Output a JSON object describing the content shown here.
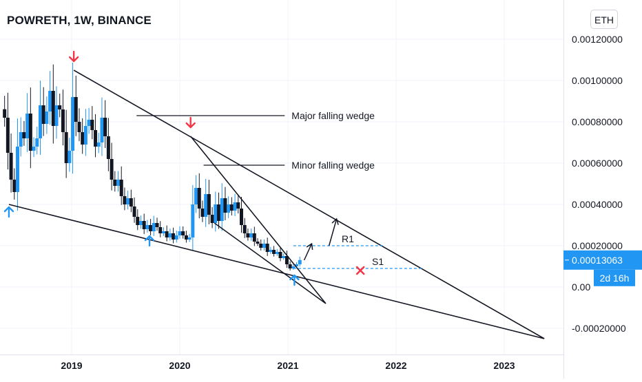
{
  "header": {
    "title": "POWRETH, 1W, BINANCE",
    "currency_button": "ETH"
  },
  "colors": {
    "candle_up": "#2196f3",
    "candle_down": "#131722",
    "arrow_up": "#2196f3",
    "arrow_down": "#f23645",
    "cross": "#f23645",
    "price_label_bg": "#2196f3",
    "level_line": "#2196f3"
  },
  "chart_data": {
    "type": "candlestick",
    "title": "POWRETH, 1W, BINANCE",
    "xlabel": "",
    "ylabel": "",
    "x_tick_labels": [
      "2019",
      "2020",
      "2021",
      "2022",
      "2023"
    ],
    "y_tick_labels": [
      "0.00120000",
      "0.00100000",
      "0.00080000",
      "0.00060000",
      "0.00040000",
      "0.00020000",
      "0.00",
      "-0.00020000"
    ],
    "y_ticks": [
      0.0012,
      0.001,
      0.0008,
      0.0006,
      0.0004,
      0.0002,
      0.0,
      -0.0002
    ],
    "ylim": [
      -0.00025,
      0.00132
    ],
    "xlim": [
      2018.36,
      2023.75
    ],
    "grid": true,
    "last_price_label": "0.00013063",
    "last_price": 0.00013063,
    "countdown_label": "2d 16h",
    "closes": [
      [
        2018.38,
        0.00082
      ],
      [
        2018.41,
        0.00065
      ],
      [
        2018.44,
        0.00052
      ],
      [
        2018.47,
        0.00046
      ],
      [
        2018.5,
        0.00068
      ],
      [
        2018.53,
        0.00075
      ],
      [
        2018.56,
        0.00072
      ],
      [
        2018.59,
        0.00084
      ],
      [
        2018.62,
        0.00066
      ],
      [
        2018.65,
        0.00068
      ],
      [
        2018.68,
        0.00072
      ],
      [
        2018.71,
        0.00088
      ],
      [
        2018.74,
        0.00079
      ],
      [
        2018.77,
        0.00085
      ],
      [
        2018.8,
        0.00095
      ],
      [
        2018.83,
        0.00078
      ],
      [
        2018.86,
        0.00088
      ],
      [
        2018.89,
        0.00086
      ],
      [
        2018.92,
        0.00075
      ],
      [
        2018.95,
        0.0006
      ],
      [
        2018.98,
        0.00066
      ],
      [
        2019.01,
        0.00092
      ],
      [
        2019.04,
        0.0008
      ],
      [
        2019.07,
        0.00075
      ],
      [
        2019.1,
        0.00069
      ],
      [
        2019.13,
        0.00078
      ],
      [
        2019.16,
        0.00081
      ],
      [
        2019.19,
        0.00076
      ],
      [
        2019.22,
        0.00068
      ],
      [
        2019.25,
        0.0007
      ],
      [
        2019.28,
        0.00082
      ],
      [
        2019.31,
        0.00073
      ],
      [
        2019.34,
        0.00062
      ],
      [
        2019.37,
        0.00052
      ],
      [
        2019.4,
        0.00049
      ],
      [
        2019.43,
        0.00052
      ],
      [
        2019.46,
        0.00044
      ],
      [
        2019.49,
        0.0004
      ],
      [
        2019.52,
        0.00043
      ],
      [
        2019.55,
        0.00039
      ],
      [
        2019.58,
        0.00034
      ],
      [
        2019.61,
        0.0003
      ],
      [
        2019.64,
        0.00032
      ],
      [
        2019.67,
        0.00028
      ],
      [
        2019.7,
        0.0003
      ],
      [
        2019.73,
        0.00027
      ],
      [
        2019.76,
        0.00031
      ],
      [
        2019.79,
        0.00029
      ],
      [
        2019.82,
        0.00026
      ],
      [
        2019.85,
        0.00027
      ],
      [
        2019.88,
        0.00024
      ],
      [
        2019.91,
        0.00026
      ],
      [
        2019.94,
        0.00023
      ],
      [
        2019.97,
        0.00025
      ],
      [
        2020.0,
        0.00027
      ],
      [
        2020.03,
        0.00025
      ],
      [
        2020.06,
        0.00023
      ],
      [
        2020.09,
        0.00024
      ],
      [
        2020.12,
        0.0004
      ],
      [
        2020.15,
        0.00048
      ],
      [
        2020.18,
        0.00038
      ],
      [
        2020.21,
        0.00034
      ],
      [
        2020.24,
        0.00045
      ],
      [
        2020.27,
        0.00035
      ],
      [
        2020.3,
        0.00031
      ],
      [
        2020.33,
        0.0004
      ],
      [
        2020.36,
        0.00032
      ],
      [
        2020.39,
        0.00043
      ],
      [
        2020.42,
        0.00036
      ],
      [
        2020.45,
        0.0004
      ],
      [
        2020.48,
        0.00037
      ],
      [
        2020.51,
        0.00041
      ],
      [
        2020.54,
        0.00038
      ],
      [
        2020.57,
        0.0003
      ],
      [
        2020.6,
        0.00026
      ],
      [
        2020.63,
        0.00024
      ],
      [
        2020.66,
        0.00026
      ],
      [
        2020.69,
        0.00022
      ],
      [
        2020.72,
        0.00021
      ],
      [
        2020.75,
        0.00019
      ],
      [
        2020.78,
        0.00021
      ],
      [
        2020.81,
        0.00017
      ],
      [
        2020.84,
        0.00018
      ],
      [
        2020.87,
        0.00016
      ],
      [
        2020.9,
        0.00017
      ],
      [
        2020.93,
        0.00014
      ],
      [
        2020.96,
        0.00015
      ],
      [
        2020.99,
        0.00011
      ],
      [
        2021.02,
        9e-05
      ],
      [
        2021.05,
        0.0001
      ],
      [
        2021.08,
        0.00011
      ],
      [
        2021.11,
        0.00013063
      ]
    ],
    "drawings": [
      {
        "kind": "trendline",
        "name": "major-wedge-upper",
        "points": [
          [
            2019.02,
            0.00105
          ],
          [
            2023.37,
            -0.00025
          ]
        ]
      },
      {
        "kind": "trendline",
        "name": "major-wedge-lower",
        "points": [
          [
            2018.42,
            0.0004
          ],
          [
            2023.37,
            -0.00025
          ]
        ]
      },
      {
        "kind": "trendline",
        "name": "minor-wedge-upper",
        "points": [
          [
            2020.1,
            0.00073
          ],
          [
            2021.35,
            -8e-05
          ]
        ]
      },
      {
        "kind": "trendline",
        "name": "minor-wedge-lower",
        "points": [
          [
            2020.32,
            0.00031
          ],
          [
            2021.35,
            -8e-05
          ]
        ]
      },
      {
        "kind": "dashed",
        "name": "r1-level",
        "label": "R1",
        "price": 0.0002,
        "x": [
          2021.05,
          2021.88
        ]
      },
      {
        "kind": "dashed",
        "name": "s1-level",
        "label": "S1",
        "price": 9e-05,
        "x": [
          2021.05,
          2022.25
        ]
      },
      {
        "kind": "pointer",
        "name": "major-label-line",
        "label": "Major falling wedge",
        "points": [
          [
            2019.6,
            0.00083
          ],
          [
            2020.97,
            0.00083
          ]
        ]
      },
      {
        "kind": "pointer",
        "name": "minor-label-line",
        "label": "Minor falling wedge",
        "points": [
          [
            2020.22,
            0.00059
          ],
          [
            2020.97,
            0.00059
          ]
        ]
      },
      {
        "kind": "arrow-up",
        "name": "swing-low-arrow",
        "at": [
          2018.42,
          0.00036
        ]
      },
      {
        "kind": "arrow-up",
        "name": "swing-low-arrow",
        "at": [
          2019.72,
          0.00022
        ]
      },
      {
        "kind": "arrow-up",
        "name": "swing-low-arrow",
        "at": [
          2021.06,
          3e-05
        ]
      },
      {
        "kind": "arrow-down",
        "name": "swing-high-arrow",
        "at": [
          2019.02,
          0.00112
        ]
      },
      {
        "kind": "arrow-down",
        "name": "swing-high-arrow",
        "at": [
          2020.1,
          0.0008
        ]
      },
      {
        "kind": "cross",
        "name": "invalidation-cross",
        "at": [
          2021.67,
          8e-05
        ]
      },
      {
        "kind": "path-arrow",
        "name": "breakout-arrow-small",
        "points": [
          [
            2021.15,
            0.00013
          ],
          [
            2021.22,
            0.00021
          ]
        ]
      },
      {
        "kind": "path-arrow",
        "name": "breakout-arrow-large",
        "points": [
          [
            2021.38,
            0.0002
          ],
          [
            2021.45,
            0.00033
          ]
        ]
      }
    ]
  }
}
